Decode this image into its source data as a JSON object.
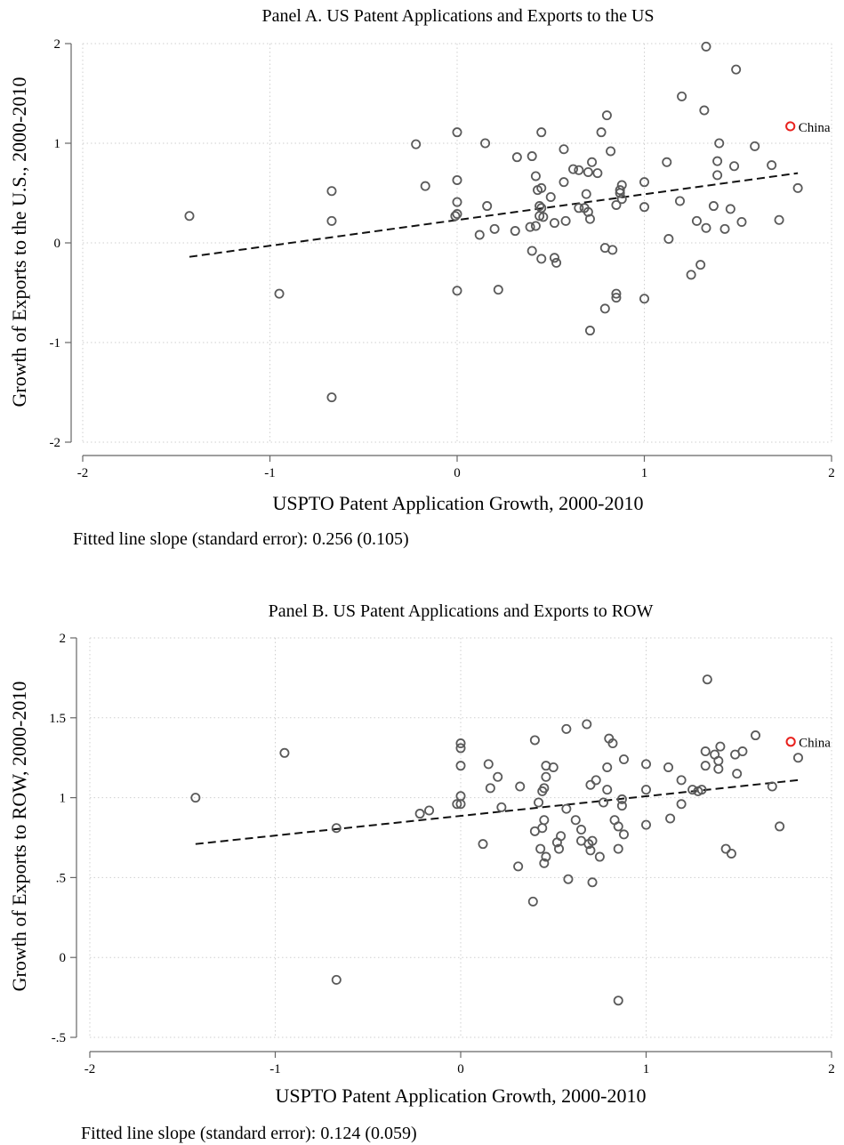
{
  "chart_data": [
    {
      "type": "scatter",
      "title": "Panel A. US Patent Applications and Exports to the US",
      "xlabel": "USPTO Patent Application Growth, 2000-2010",
      "ylabel": "Growth of Exports to the U.S., 2000-2010",
      "xlim": [
        -2,
        2
      ],
      "ylim": [
        -2,
        2
      ],
      "xticks": [
        -2,
        -1,
        0,
        1,
        2
      ],
      "xtick_labels": [
        "-2",
        "-1",
        "0",
        "1",
        "2"
      ],
      "yticks": [
        -2,
        -1,
        0,
        1,
        2
      ],
      "ytick_labels": [
        "-2",
        "-1",
        "0",
        "1",
        "2"
      ],
      "grid": true,
      "fit_line": {
        "x": [
          -1.43,
          1.82
        ],
        "y": [
          -0.14,
          0.7
        ]
      },
      "highlight": {
        "label": "China",
        "x": 1.78,
        "y": 1.17,
        "color": "#e8211d"
      },
      "note": "Fitted line slope (standard error): 0.256 (0.105)",
      "points": [
        [
          -1.43,
          0.27
        ],
        [
          -0.95,
          -0.51
        ],
        [
          -0.67,
          0.52
        ],
        [
          -0.67,
          0.22
        ],
        [
          -0.67,
          -1.55
        ],
        [
          -0.22,
          0.99
        ],
        [
          -0.17,
          0.57
        ],
        [
          0.0,
          1.11
        ],
        [
          0.0,
          0.63
        ],
        [
          0.0,
          0.41
        ],
        [
          0.0,
          0.29
        ],
        [
          -0.01,
          0.27
        ],
        [
          0.0,
          -0.48
        ],
        [
          0.12,
          0.08
        ],
        [
          0.15,
          1.0
        ],
        [
          0.16,
          0.37
        ],
        [
          0.2,
          0.14
        ],
        [
          0.22,
          -0.47
        ],
        [
          0.31,
          0.12
        ],
        [
          0.32,
          0.86
        ],
        [
          0.39,
          0.16
        ],
        [
          0.4,
          0.87
        ],
        [
          0.4,
          -0.08
        ],
        [
          0.42,
          0.67
        ],
        [
          0.42,
          0.17
        ],
        [
          0.43,
          0.53
        ],
        [
          0.44,
          0.37
        ],
        [
          0.44,
          0.27
        ],
        [
          0.45,
          0.55
        ],
        [
          0.45,
          0.35
        ],
        [
          0.45,
          1.11
        ],
        [
          0.46,
          0.26
        ],
        [
          0.45,
          -0.16
        ],
        [
          0.5,
          0.46
        ],
        [
          0.52,
          0.2
        ],
        [
          0.52,
          -0.15
        ],
        [
          0.53,
          -0.2
        ],
        [
          0.57,
          0.61
        ],
        [
          0.57,
          0.94
        ],
        [
          0.58,
          0.22
        ],
        [
          0.62,
          0.74
        ],
        [
          0.65,
          0.73
        ],
        [
          0.65,
          0.35
        ],
        [
          0.68,
          0.35
        ],
        [
          0.69,
          0.49
        ],
        [
          0.7,
          0.71
        ],
        [
          0.7,
          0.31
        ],
        [
          0.71,
          0.24
        ],
        [
          0.71,
          -0.88
        ],
        [
          0.72,
          0.81
        ],
        [
          0.75,
          0.7
        ],
        [
          0.77,
          1.11
        ],
        [
          0.79,
          -0.05
        ],
        [
          0.79,
          -0.66
        ],
        [
          0.8,
          1.28
        ],
        [
          0.82,
          0.92
        ],
        [
          0.83,
          -0.07
        ],
        [
          0.85,
          0.38
        ],
        [
          0.85,
          -0.51
        ],
        [
          0.85,
          -0.55
        ],
        [
          0.87,
          0.5
        ],
        [
          0.87,
          0.53
        ],
        [
          0.88,
          0.44
        ],
        [
          0.88,
          0.58
        ],
        [
          1.0,
          0.61
        ],
        [
          1.0,
          0.36
        ],
        [
          1.0,
          -0.56
        ],
        [
          1.12,
          0.81
        ],
        [
          1.13,
          0.04
        ],
        [
          1.19,
          0.42
        ],
        [
          1.2,
          1.47
        ],
        [
          1.25,
          -0.32
        ],
        [
          1.28,
          0.22
        ],
        [
          1.3,
          -0.22
        ],
        [
          1.32,
          1.33
        ],
        [
          1.33,
          1.97
        ],
        [
          1.33,
          0.15
        ],
        [
          1.37,
          0.37
        ],
        [
          1.39,
          0.82
        ],
        [
          1.39,
          0.68
        ],
        [
          1.4,
          1.0
        ],
        [
          1.43,
          0.14
        ],
        [
          1.46,
          0.34
        ],
        [
          1.49,
          1.74
        ],
        [
          1.48,
          0.77
        ],
        [
          1.52,
          0.21
        ],
        [
          1.59,
          0.97
        ],
        [
          1.68,
          0.78
        ],
        [
          1.72,
          0.23
        ],
        [
          1.82,
          0.55
        ]
      ]
    },
    {
      "type": "scatter",
      "title": "Panel B. US Patent Applications and Exports to ROW",
      "xlabel": "USPTO Patent Application Growth, 2000-2010",
      "ylabel": "Growth of Exports to ROW, 2000-2010",
      "xlim": [
        -2,
        2
      ],
      "ylim": [
        -0.5,
        2
      ],
      "xticks": [
        -2,
        -1,
        0,
        1,
        2
      ],
      "xtick_labels": [
        "-2",
        "-1",
        "0",
        "1",
        "2"
      ],
      "yticks": [
        -0.5,
        0,
        0.5,
        1,
        1.5,
        2
      ],
      "ytick_labels": [
        "-.5",
        "0",
        ".5",
        "1",
        "1.5",
        "2"
      ],
      "grid": true,
      "fit_line": {
        "x": [
          -1.43,
          1.82
        ],
        "y": [
          0.71,
          1.11
        ]
      },
      "highlight": {
        "label": "China",
        "x": 1.78,
        "y": 1.35,
        "color": "#e8211d"
      },
      "note": "Fitted line slope (standard error): 0.124 (0.059)",
      "points": [
        [
          -1.43,
          1.0
        ],
        [
          -0.95,
          1.28
        ],
        [
          -0.67,
          0.81
        ],
        [
          -0.67,
          -0.14
        ],
        [
          -0.22,
          0.9
        ],
        [
          -0.17,
          0.92
        ],
        [
          -0.02,
          0.96
        ],
        [
          0.0,
          1.34
        ],
        [
          0.0,
          1.31
        ],
        [
          0.0,
          1.2
        ],
        [
          0.0,
          1.01
        ],
        [
          0.0,
          0.96
        ],
        [
          0.12,
          0.71
        ],
        [
          0.15,
          1.21
        ],
        [
          0.16,
          1.06
        ],
        [
          0.2,
          1.13
        ],
        [
          0.22,
          0.94
        ],
        [
          0.31,
          0.57
        ],
        [
          0.32,
          1.07
        ],
        [
          0.39,
          0.35
        ],
        [
          0.4,
          1.36
        ],
        [
          0.4,
          0.79
        ],
        [
          0.42,
          0.97
        ],
        [
          0.43,
          0.68
        ],
        [
          0.44,
          1.04
        ],
        [
          0.44,
          0.81
        ],
        [
          0.45,
          1.06
        ],
        [
          0.45,
          0.86
        ],
        [
          0.45,
          0.59
        ],
        [
          0.46,
          1.2
        ],
        [
          0.46,
          1.13
        ],
        [
          0.46,
          0.63
        ],
        [
          0.5,
          1.19
        ],
        [
          0.52,
          0.72
        ],
        [
          0.54,
          0.76
        ],
        [
          0.53,
          0.68
        ],
        [
          0.57,
          1.43
        ],
        [
          0.57,
          0.93
        ],
        [
          0.58,
          0.49
        ],
        [
          0.62,
          0.86
        ],
        [
          0.65,
          0.8
        ],
        [
          0.65,
          0.73
        ],
        [
          0.68,
          1.46
        ],
        [
          0.69,
          0.71
        ],
        [
          0.7,
          1.08
        ],
        [
          0.7,
          0.67
        ],
        [
          0.71,
          0.73
        ],
        [
          0.71,
          0.47
        ],
        [
          0.73,
          1.11
        ],
        [
          0.75,
          0.63
        ],
        [
          0.77,
          0.97
        ],
        [
          0.79,
          1.19
        ],
        [
          0.79,
          1.05
        ],
        [
          0.8,
          1.37
        ],
        [
          0.82,
          1.34
        ],
        [
          0.83,
          0.86
        ],
        [
          0.85,
          0.82
        ],
        [
          0.85,
          0.68
        ],
        [
          0.85,
          -0.27
        ],
        [
          0.87,
          0.99
        ],
        [
          0.87,
          0.95
        ],
        [
          0.88,
          1.24
        ],
        [
          0.88,
          0.77
        ],
        [
          1.0,
          1.21
        ],
        [
          1.0,
          1.05
        ],
        [
          1.0,
          0.83
        ],
        [
          1.12,
          1.19
        ],
        [
          1.13,
          0.87
        ],
        [
          1.19,
          1.11
        ],
        [
          1.19,
          0.96
        ],
        [
          1.25,
          1.05
        ],
        [
          1.28,
          1.04
        ],
        [
          1.3,
          1.05
        ],
        [
          1.32,
          1.29
        ],
        [
          1.32,
          1.2
        ],
        [
          1.33,
          1.74
        ],
        [
          1.37,
          1.27
        ],
        [
          1.39,
          1.23
        ],
        [
          1.39,
          1.18
        ],
        [
          1.4,
          1.32
        ],
        [
          1.43,
          0.68
        ],
        [
          1.46,
          0.65
        ],
        [
          1.48,
          1.27
        ],
        [
          1.49,
          1.15
        ],
        [
          1.52,
          1.29
        ],
        [
          1.59,
          1.39
        ],
        [
          1.68,
          1.07
        ],
        [
          1.72,
          0.82
        ],
        [
          1.82,
          1.25
        ]
      ]
    }
  ]
}
